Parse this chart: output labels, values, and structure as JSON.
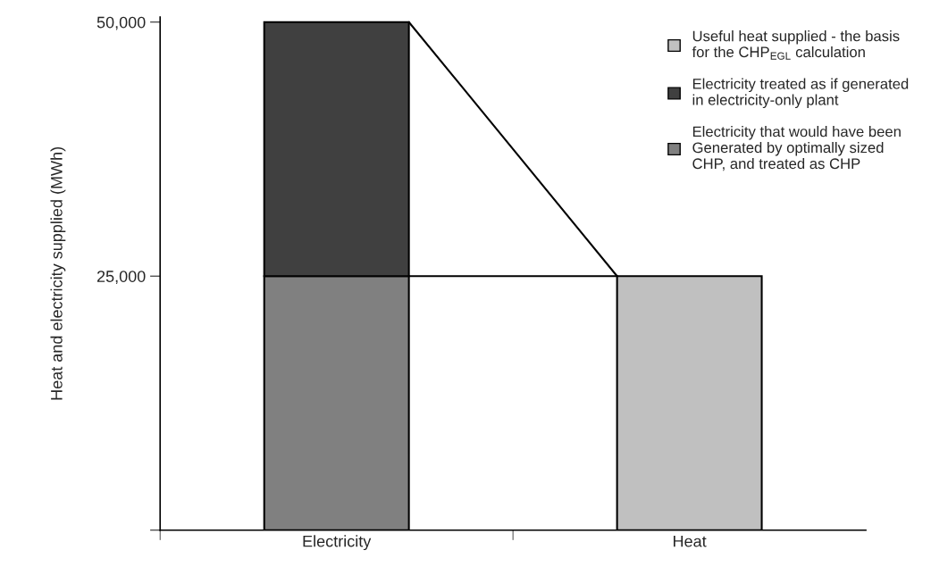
{
  "chart_data": {
    "type": "bar",
    "stacked": true,
    "ylabel": "Heat and electricity supplied (MWh)",
    "categories": [
      "Electricity",
      "Heat"
    ],
    "series": [
      {
        "name": "Electricity that would have been\nGenerated by optimally sized\nCHP, and treated as CHP",
        "color": "#808080",
        "values": [
          25000,
          null
        ]
      },
      {
        "name": "Electricity treated as if generated\nin electricity-only plant",
        "color": "#404040",
        "values": [
          25000,
          null
        ]
      },
      {
        "name": "Useful heat supplied - the basis\nfor the CHP$_{EGL}$ calculation",
        "color": "#c0c0c0",
        "values": [
          null,
          25000
        ]
      }
    ],
    "ylim": [
      0,
      50500
    ],
    "yticks": [
      {
        "value": 0,
        "label": null
      },
      {
        "value": 25000,
        "label": "25,000"
      },
      {
        "value": 50000,
        "label": "50,000"
      }
    ],
    "grid": false,
    "legend": "top right"
  }
}
